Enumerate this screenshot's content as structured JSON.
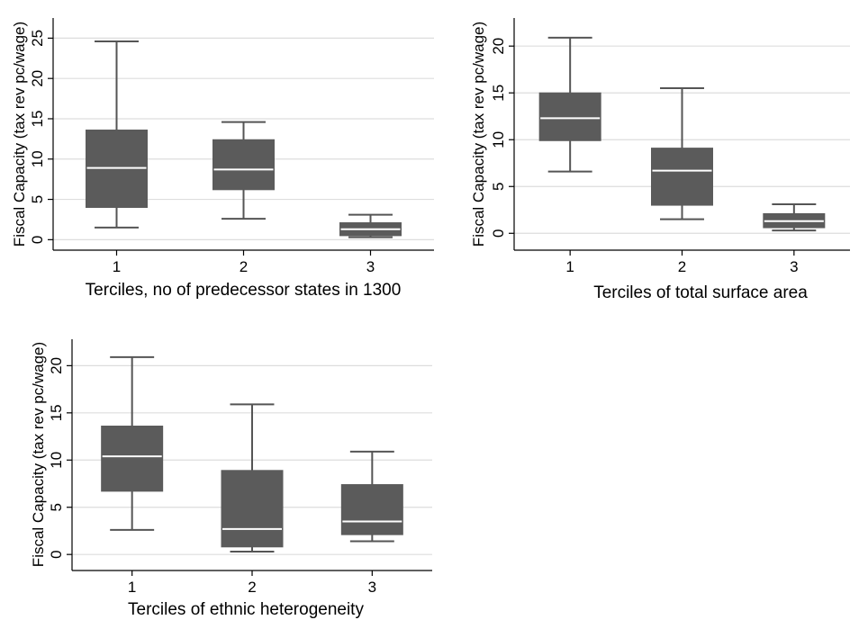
{
  "chart_data": [
    {
      "type": "box",
      "title": "",
      "xlabel": "Terciles, no of predecessor states in 1300",
      "ylabel": "Fiscal Capacity (tax rev pc/wage)",
      "categories": [
        "1",
        "2",
        "3"
      ],
      "yticks": [
        0,
        5,
        10,
        15,
        20,
        25
      ],
      "ylim": [
        -1.3,
        27.5
      ],
      "grid": true,
      "boxes": [
        {
          "whisker_low": 1.5,
          "q1": 4.0,
          "median": 8.9,
          "q3": 13.6,
          "whisker_high": 24.6
        },
        {
          "whisker_low": 2.6,
          "q1": 6.2,
          "median": 8.7,
          "q3": 12.4,
          "whisker_high": 14.6
        },
        {
          "whisker_low": 0.3,
          "q1": 0.5,
          "median": 1.3,
          "q3": 2.1,
          "whisker_high": 3.1
        }
      ]
    },
    {
      "type": "box",
      "title": "",
      "xlabel": "Terciles of total surface area",
      "ylabel": "Fiscal Capacity (tax rev pc/wage)",
      "categories": [
        "1",
        "2",
        "3"
      ],
      "yticks": [
        0,
        5,
        10,
        15,
        20
      ],
      "ylim": [
        -1.8,
        23.0
      ],
      "grid": true,
      "boxes": [
        {
          "whisker_low": 6.6,
          "q1": 9.9,
          "median": 12.3,
          "q3": 15.0,
          "whisker_high": 20.9
        },
        {
          "whisker_low": 1.5,
          "q1": 3.0,
          "median": 6.7,
          "q3": 9.1,
          "whisker_high": 15.5
        },
        {
          "whisker_low": 0.3,
          "q1": 0.6,
          "median": 1.3,
          "q3": 2.1,
          "whisker_high": 3.1
        }
      ]
    },
    {
      "type": "box",
      "title": "",
      "xlabel": "Terciles of ethnic heterogeneity",
      "ylabel": "Fiscal Capacity (tax rev pc/wage)",
      "categories": [
        "1",
        "2",
        "3"
      ],
      "yticks": [
        0,
        5,
        10,
        15,
        20
      ],
      "ylim": [
        -1.7,
        22.8
      ],
      "grid": true,
      "boxes": [
        {
          "whisker_low": 2.6,
          "q1": 6.7,
          "median": 10.4,
          "q3": 13.6,
          "whisker_high": 20.9
        },
        {
          "whisker_low": 0.3,
          "q1": 0.8,
          "median": 2.7,
          "q3": 8.9,
          "whisker_high": 15.9
        },
        {
          "whisker_low": 1.4,
          "q1": 2.1,
          "median": 3.5,
          "q3": 7.4,
          "whisker_high": 10.9
        }
      ]
    }
  ],
  "colors": {
    "box_fill": "#5b5b5b",
    "median": "#ffffff",
    "whisker": "#555555",
    "grid": "#dddddd",
    "axis": "#000000"
  }
}
